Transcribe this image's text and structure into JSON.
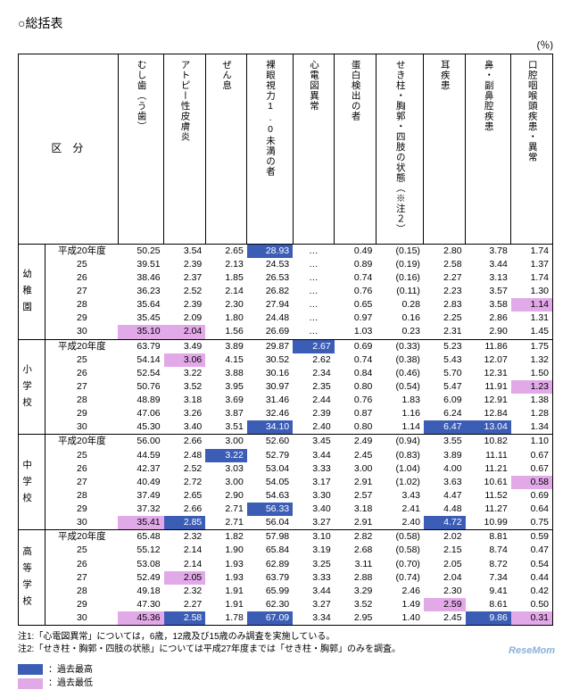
{
  "title": "○総括表",
  "unit": "(％)",
  "columns": [
    "むし歯（う歯）",
    "アトピー性皮膚炎",
    "ぜん息",
    "裸眼視力1.0未満の者",
    "心電図異常",
    "蛋白検出の者",
    "せき柱・胸郭・四肢の状態（※注２）",
    "耳疾患",
    "鼻・副鼻腔疾患",
    "口腔咽喉頭疾患・異常"
  ],
  "categories": [
    {
      "name": "幼稚園",
      "rows": [
        {
          "label": "平成20年度",
          "v": [
            "50.25",
            "3.54",
            "2.65",
            "28.93",
            "…",
            "0.49",
            "(0.15)",
            "2.80",
            "3.78",
            "1.74"
          ],
          "hl": {
            "3": "hi"
          }
        },
        {
          "label": "25",
          "v": [
            "39.51",
            "2.39",
            "2.13",
            "24.53",
            "…",
            "0.89",
            "(0.19)",
            "2.58",
            "3.44",
            "1.37"
          ]
        },
        {
          "label": "26",
          "v": [
            "38.46",
            "2.37",
            "1.85",
            "26.53",
            "…",
            "0.74",
            "(0.16)",
            "2.27",
            "3.13",
            "1.74"
          ]
        },
        {
          "label": "27",
          "v": [
            "36.23",
            "2.52",
            "2.14",
            "26.82",
            "…",
            "0.76",
            "(0.11)",
            "2.23",
            "3.57",
            "1.30"
          ]
        },
        {
          "label": "28",
          "v": [
            "35.64",
            "2.39",
            "2.30",
            "27.94",
            "…",
            "0.65",
            "0.28",
            "2.83",
            "3.58",
            "1.14"
          ],
          "hl": {
            "9": "lo"
          }
        },
        {
          "label": "29",
          "v": [
            "35.45",
            "2.09",
            "1.80",
            "24.48",
            "…",
            "0.97",
            "0.16",
            "2.25",
            "2.86",
            "1.31"
          ]
        },
        {
          "label": "30",
          "v": [
            "35.10",
            "2.04",
            "1.56",
            "26.69",
            "…",
            "1.03",
            "0.23",
            "2.31",
            "2.90",
            "1.45"
          ],
          "hl": {
            "0": "lo",
            "1": "lo"
          }
        }
      ]
    },
    {
      "name": "小学校",
      "rows": [
        {
          "label": "平成20年度",
          "v": [
            "63.79",
            "3.49",
            "3.89",
            "29.87",
            "2.67",
            "0.69",
            "(0.33)",
            "5.23",
            "11.86",
            "1.75"
          ],
          "hl": {
            "4": "hi"
          }
        },
        {
          "label": "25",
          "v": [
            "54.14",
            "3.06",
            "4.15",
            "30.52",
            "2.62",
            "0.74",
            "(0.38)",
            "5.43",
            "12.07",
            "1.32"
          ],
          "hl": {
            "1": "lo"
          }
        },
        {
          "label": "26",
          "v": [
            "52.54",
            "3.22",
            "3.88",
            "30.16",
            "2.34",
            "0.84",
            "(0.46)",
            "5.70",
            "12.31",
            "1.50"
          ]
        },
        {
          "label": "27",
          "v": [
            "50.76",
            "3.52",
            "3.95",
            "30.97",
            "2.35",
            "0.80",
            "(0.54)",
            "5.47",
            "11.91",
            "1.23"
          ],
          "hl": {
            "9": "lo"
          }
        },
        {
          "label": "28",
          "v": [
            "48.89",
            "3.18",
            "3.69",
            "31.46",
            "2.44",
            "0.76",
            "1.83",
            "6.09",
            "12.91",
            "1.38"
          ]
        },
        {
          "label": "29",
          "v": [
            "47.06",
            "3.26",
            "3.87",
            "32.46",
            "2.39",
            "0.87",
            "1.16",
            "6.24",
            "12.84",
            "1.28"
          ]
        },
        {
          "label": "30",
          "v": [
            "45.30",
            "3.40",
            "3.51",
            "34.10",
            "2.40",
            "0.80",
            "1.14",
            "6.47",
            "13.04",
            "1.34"
          ],
          "hl": {
            "3": "hi",
            "7": "hi",
            "8": "hi"
          }
        }
      ]
    },
    {
      "name": "中学校",
      "rows": [
        {
          "label": "平成20年度",
          "v": [
            "56.00",
            "2.66",
            "3.00",
            "52.60",
            "3.45",
            "2.49",
            "(0.94)",
            "3.55",
            "10.82",
            "1.10"
          ]
        },
        {
          "label": "25",
          "v": [
            "44.59",
            "2.48",
            "3.22",
            "52.79",
            "3.44",
            "2.45",
            "(0.83)",
            "3.89",
            "11.11",
            "0.67"
          ],
          "hl": {
            "2": "hi"
          }
        },
        {
          "label": "26",
          "v": [
            "42.37",
            "2.52",
            "3.03",
            "53.04",
            "3.33",
            "3.00",
            "(1.04)",
            "4.00",
            "11.21",
            "0.67"
          ]
        },
        {
          "label": "27",
          "v": [
            "40.49",
            "2.72",
            "3.00",
            "54.05",
            "3.17",
            "2.91",
            "(1.02)",
            "3.63",
            "10.61",
            "0.58"
          ],
          "hl": {
            "9": "lo"
          }
        },
        {
          "label": "28",
          "v": [
            "37.49",
            "2.65",
            "2.90",
            "54.63",
            "3.30",
            "2.57",
            "3.43",
            "4.47",
            "11.52",
            "0.69"
          ]
        },
        {
          "label": "29",
          "v": [
            "37.32",
            "2.66",
            "2.71",
            "56.33",
            "3.40",
            "3.18",
            "2.41",
            "4.48",
            "11.27",
            "0.64"
          ],
          "hl": {
            "3": "hi"
          }
        },
        {
          "label": "30",
          "v": [
            "35.41",
            "2.85",
            "2.71",
            "56.04",
            "3.27",
            "2.91",
            "2.40",
            "4.72",
            "10.99",
            "0.75"
          ],
          "hl": {
            "0": "lo",
            "1": "hi",
            "7": "hi"
          }
        }
      ]
    },
    {
      "name": "高等学校",
      "rows": [
        {
          "label": "平成20年度",
          "v": [
            "65.48",
            "2.32",
            "1.82",
            "57.98",
            "3.10",
            "2.82",
            "(0.58)",
            "2.02",
            "8.81",
            "0.59"
          ]
        },
        {
          "label": "25",
          "v": [
            "55.12",
            "2.14",
            "1.90",
            "65.84",
            "3.19",
            "2.68",
            "(0.58)",
            "2.15",
            "8.74",
            "0.47"
          ]
        },
        {
          "label": "26",
          "v": [
            "53.08",
            "2.14",
            "1.93",
            "62.89",
            "3.25",
            "3.11",
            "(0.70)",
            "2.05",
            "8.72",
            "0.54"
          ]
        },
        {
          "label": "27",
          "v": [
            "52.49",
            "2.05",
            "1.93",
            "63.79",
            "3.33",
            "2.88",
            "(0.74)",
            "2.04",
            "7.34",
            "0.44"
          ],
          "hl": {
            "1": "lo"
          }
        },
        {
          "label": "28",
          "v": [
            "49.18",
            "2.32",
            "1.91",
            "65.99",
            "3.44",
            "3.29",
            "2.46",
            "2.30",
            "9.41",
            "0.42"
          ]
        },
        {
          "label": "29",
          "v": [
            "47.30",
            "2.27",
            "1.91",
            "62.30",
            "3.27",
            "3.52",
            "1.49",
            "2.59",
            "8.61",
            "0.50"
          ],
          "hl": {
            "7": "lo"
          }
        },
        {
          "label": "30",
          "v": [
            "45.36",
            "2.58",
            "1.78",
            "67.09",
            "3.34",
            "2.95",
            "1.40",
            "2.45",
            "9.86",
            "0.31"
          ],
          "hl": {
            "0": "lo",
            "1": "hi",
            "3": "hi",
            "8": "hi",
            "9": "lo"
          }
        }
      ]
    }
  ],
  "notes": [
    "注1:「心電図異常」については，6歳，12歳及び15歳のみ調査を実施している。",
    "注2:「せき柱・胸郭・四肢の状態」については平成27年度までは「せき柱・胸郭」のみを調査。"
  ],
  "legend": {
    "hi": "：過去最高",
    "lo": "：過去最低"
  },
  "colors": {
    "hi": "#3b5db5",
    "lo": "#e2a9e8"
  },
  "logo": "ReseMom"
}
